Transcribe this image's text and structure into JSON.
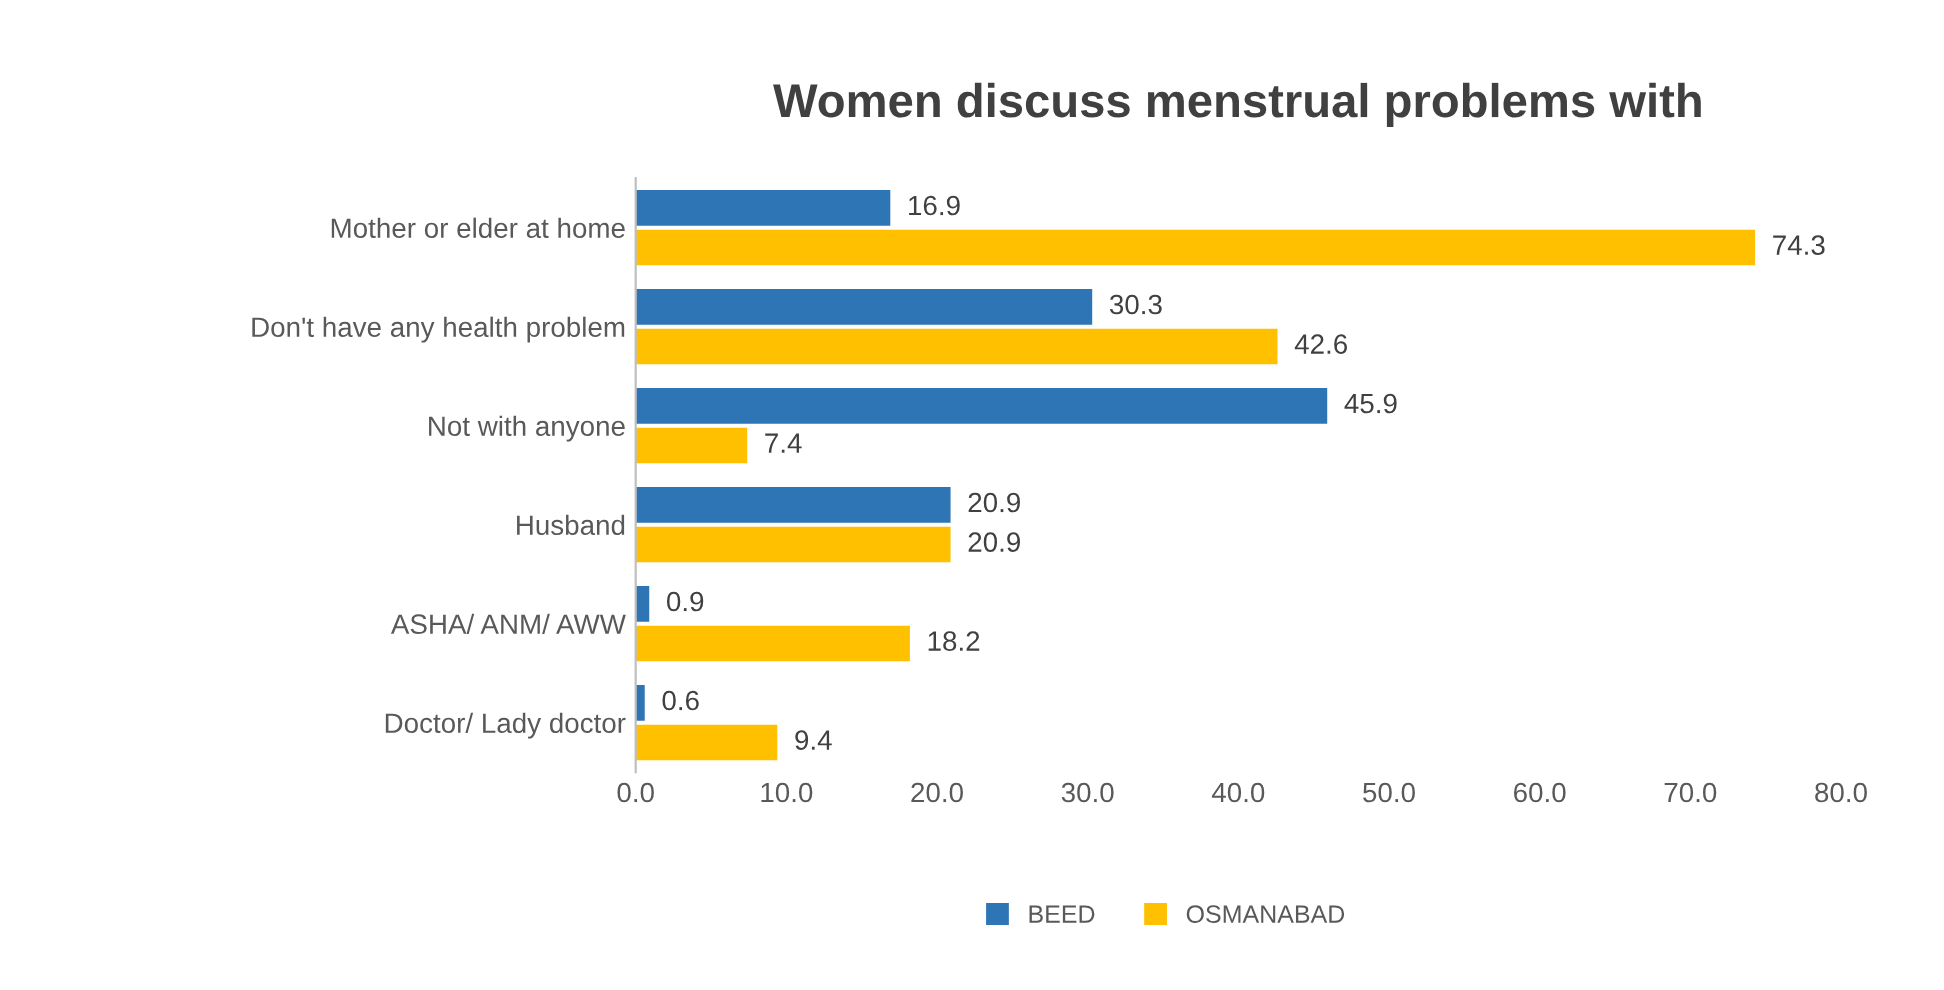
{
  "chart_data": {
    "type": "bar",
    "orientation": "horizontal",
    "title": "Women discuss menstrual problems with",
    "categories": [
      "Mother or elder at home",
      "Don't have any health problem",
      "Not with anyone",
      "Husband",
      "ASHA/ ANM/ AWW",
      "Doctor/ Lady doctor"
    ],
    "series": [
      {
        "name": "BEED",
        "color": "#2e75b6",
        "values": [
          16.9,
          30.3,
          45.9,
          20.9,
          0.9,
          0.6
        ]
      },
      {
        "name": "OSMANABAD",
        "color": "#ffc000",
        "values": [
          74.3,
          42.6,
          7.4,
          20.9,
          18.2,
          9.4
        ]
      }
    ],
    "xlim": [
      0,
      80
    ],
    "xticks": [
      {
        "value": 0,
        "label": "0.0"
      },
      {
        "value": 10,
        "label": "10.0"
      },
      {
        "value": 20,
        "label": "20.0"
      },
      {
        "value": 30,
        "label": "30.0"
      },
      {
        "value": 40,
        "label": "40.0"
      },
      {
        "value": 50,
        "label": "50.0"
      },
      {
        "value": 60,
        "label": "60.0"
      },
      {
        "value": 70,
        "label": "70.0"
      },
      {
        "value": 80,
        "label": "80.0"
      }
    ],
    "data_labels": true,
    "legend": "bottom",
    "grid": false
  }
}
